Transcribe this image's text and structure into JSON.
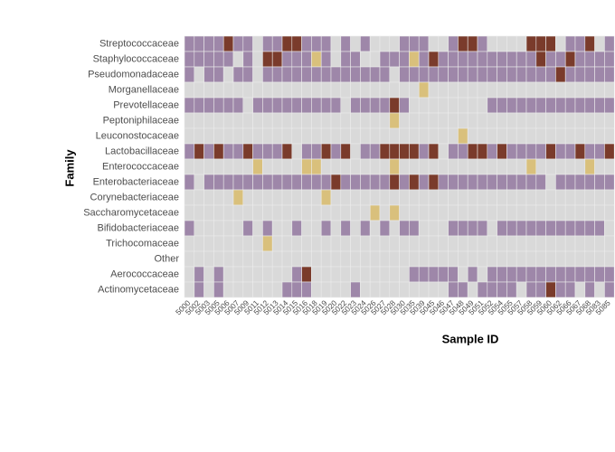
{
  "chart_data": {
    "type": "heatmap",
    "x_label": "Sample ID",
    "y_label": "Family",
    "rows": [
      "Streptococcaceae",
      "Staphylococcaceae",
      "Pseudomonadaceae",
      "Morganellaceae",
      "Prevotellaceae",
      "Peptoniphilaceae",
      "Leuconostocaceae",
      "Lactobacillaceae",
      "Enterococcaceae",
      "Enterobacteriaceae",
      "Corynebacteriaceae",
      "Saccharomycetaceae",
      "Bifidobacteriaceae",
      "Trichocomaceae",
      "Other",
      "Aerococcaceae",
      "Actinomycetaceae"
    ],
    "columns": [
      "5000",
      "5002",
      "5003",
      "5005",
      "5006",
      "5007",
      "5009",
      "5011",
      "5012",
      "5013",
      "5014",
      "5015",
      "5016",
      "5018",
      "5019",
      "5020",
      "5022",
      "5023",
      "5024",
      "5026",
      "5027",
      "5028",
      "5030",
      "5035",
      "5039",
      "5045",
      "5046",
      "5047",
      "5048",
      "5049",
      "5051",
      "5052",
      "5054",
      "5055",
      "5057",
      "5058",
      "5059",
      "5060",
      "5062",
      "5066",
      "5067",
      "5068",
      "5083",
      "5085"
    ],
    "values": [
      [
        1,
        1,
        1,
        1,
        2,
        1,
        1,
        0,
        1,
        1,
        2,
        2,
        1,
        1,
        1,
        0,
        1,
        0,
        1,
        0,
        0,
        0,
        1,
        1,
        1,
        0,
        0,
        1,
        2,
        2,
        1,
        0,
        0,
        0,
        0,
        2,
        2,
        2,
        0,
        1,
        1,
        2,
        0,
        1
      ],
      [
        1,
        1,
        1,
        1,
        1,
        0,
        1,
        0,
        2,
        2,
        1,
        1,
        1,
        3,
        1,
        0,
        1,
        1,
        0,
        0,
        1,
        1,
        1,
        3,
        1,
        2,
        1,
        1,
        1,
        1,
        1,
        1,
        1,
        1,
        1,
        1,
        2,
        1,
        1,
        2,
        1,
        1,
        1,
        1
      ],
      [
        1,
        0,
        1,
        1,
        0,
        1,
        1,
        0,
        1,
        1,
        1,
        1,
        1,
        1,
        1,
        1,
        1,
        1,
        1,
        1,
        1,
        0,
        1,
        1,
        1,
        1,
        1,
        1,
        1,
        1,
        1,
        1,
        1,
        1,
        1,
        1,
        1,
        1,
        2,
        1,
        1,
        1,
        1,
        1
      ],
      [
        0,
        0,
        0,
        0,
        0,
        0,
        0,
        0,
        0,
        0,
        0,
        0,
        0,
        0,
        0,
        0,
        0,
        0,
        0,
        0,
        0,
        0,
        0,
        0,
        3,
        0,
        0,
        0,
        0,
        0,
        0,
        0,
        0,
        0,
        0,
        0,
        0,
        0,
        0,
        0,
        0,
        0,
        0,
        0
      ],
      [
        1,
        1,
        1,
        1,
        1,
        1,
        0,
        1,
        1,
        1,
        1,
        1,
        1,
        1,
        1,
        1,
        0,
        1,
        1,
        1,
        1,
        2,
        1,
        0,
        0,
        0,
        0,
        0,
        0,
        0,
        0,
        1,
        1,
        1,
        1,
        1,
        1,
        1,
        1,
        1,
        1,
        1,
        1,
        1
      ],
      [
        0,
        0,
        0,
        0,
        0,
        0,
        0,
        0,
        0,
        0,
        0,
        0,
        0,
        0,
        0,
        0,
        0,
        0,
        0,
        0,
        0,
        3,
        0,
        0,
        0,
        0,
        0,
        0,
        0,
        0,
        0,
        0,
        0,
        0,
        0,
        0,
        0,
        0,
        0,
        0,
        0,
        0,
        0,
        0
      ],
      [
        0,
        0,
        0,
        0,
        0,
        0,
        0,
        0,
        0,
        0,
        0,
        0,
        0,
        0,
        0,
        0,
        0,
        0,
        0,
        0,
        0,
        0,
        0,
        0,
        0,
        0,
        0,
        0,
        3,
        0,
        0,
        0,
        0,
        0,
        0,
        0,
        0,
        0,
        0,
        0,
        0,
        0,
        0,
        0
      ],
      [
        1,
        2,
        1,
        2,
        1,
        1,
        2,
        1,
        1,
        1,
        2,
        0,
        1,
        1,
        2,
        1,
        2,
        0,
        1,
        1,
        2,
        2,
        2,
        2,
        1,
        2,
        0,
        1,
        1,
        2,
        2,
        1,
        2,
        1,
        1,
        1,
        1,
        2,
        1,
        1,
        2,
        1,
        1,
        2
      ],
      [
        0,
        0,
        0,
        0,
        0,
        0,
        0,
        3,
        0,
        0,
        0,
        0,
        3,
        3,
        0,
        0,
        0,
        0,
        0,
        0,
        0,
        3,
        0,
        0,
        0,
        0,
        0,
        0,
        0,
        0,
        0,
        0,
        0,
        0,
        0,
        3,
        0,
        0,
        0,
        0,
        0,
        3,
        0,
        0
      ],
      [
        1,
        0,
        1,
        1,
        1,
        1,
        1,
        1,
        1,
        1,
        1,
        1,
        1,
        1,
        1,
        2,
        1,
        1,
        1,
        1,
        1,
        2,
        1,
        2,
        1,
        2,
        1,
        1,
        1,
        1,
        1,
        1,
        1,
        1,
        1,
        1,
        1,
        0,
        1,
        1,
        1,
        1,
        1,
        1
      ],
      [
        0,
        0,
        0,
        0,
        0,
        3,
        0,
        0,
        0,
        0,
        0,
        0,
        0,
        0,
        3,
        0,
        0,
        0,
        0,
        0,
        0,
        0,
        0,
        0,
        0,
        0,
        0,
        0,
        0,
        0,
        0,
        0,
        0,
        0,
        0,
        0,
        0,
        0,
        0,
        0,
        0,
        0,
        0,
        0
      ],
      [
        0,
        0,
        0,
        0,
        0,
        0,
        0,
        0,
        0,
        0,
        0,
        0,
        0,
        0,
        0,
        0,
        0,
        0,
        0,
        3,
        0,
        3,
        0,
        0,
        0,
        0,
        0,
        0,
        0,
        0,
        0,
        0,
        0,
        0,
        0,
        0,
        0,
        0,
        0,
        0,
        0,
        0,
        0,
        0
      ],
      [
        1,
        0,
        0,
        0,
        0,
        0,
        1,
        0,
        1,
        0,
        0,
        1,
        0,
        0,
        1,
        0,
        1,
        0,
        1,
        0,
        1,
        0,
        1,
        1,
        0,
        0,
        0,
        1,
        1,
        1,
        1,
        0,
        1,
        1,
        1,
        1,
        1,
        1,
        1,
        1,
        1,
        1,
        1,
        0
      ],
      [
        0,
        0,
        0,
        0,
        0,
        0,
        0,
        0,
        3,
        0,
        0,
        0,
        0,
        0,
        0,
        0,
        0,
        0,
        0,
        0,
        0,
        0,
        0,
        0,
        0,
        0,
        0,
        0,
        0,
        0,
        0,
        0,
        0,
        0,
        0,
        0,
        0,
        0,
        0,
        0,
        0,
        0,
        0,
        0
      ],
      [
        0,
        0,
        0,
        0,
        0,
        0,
        0,
        0,
        0,
        0,
        0,
        0,
        0,
        0,
        0,
        0,
        0,
        0,
        0,
        0,
        0,
        0,
        0,
        0,
        0,
        0,
        0,
        0,
        0,
        0,
        0,
        0,
        0,
        0,
        0,
        0,
        0,
        0,
        0,
        0,
        0,
        0,
        0,
        0
      ],
      [
        0,
        1,
        0,
        1,
        0,
        0,
        0,
        0,
        0,
        0,
        0,
        1,
        2,
        0,
        0,
        0,
        0,
        0,
        0,
        0,
        0,
        0,
        0,
        1,
        1,
        1,
        1,
        1,
        0,
        1,
        0,
        1,
        1,
        1,
        1,
        1,
        1,
        1,
        1,
        1,
        1,
        1,
        1,
        1
      ],
      [
        0,
        1,
        0,
        1,
        0,
        0,
        0,
        0,
        0,
        0,
        1,
        1,
        1,
        0,
        0,
        0,
        0,
        1,
        0,
        0,
        0,
        0,
        0,
        0,
        0,
        0,
        0,
        1,
        1,
        0,
        1,
        1,
        1,
        1,
        0,
        1,
        1,
        2,
        1,
        1,
        0,
        1,
        0,
        1
      ]
    ],
    "colors": [
      "#d9d9d9",
      "#9e87a9",
      "#7a3b2b",
      "#d9c07c"
    ]
  }
}
